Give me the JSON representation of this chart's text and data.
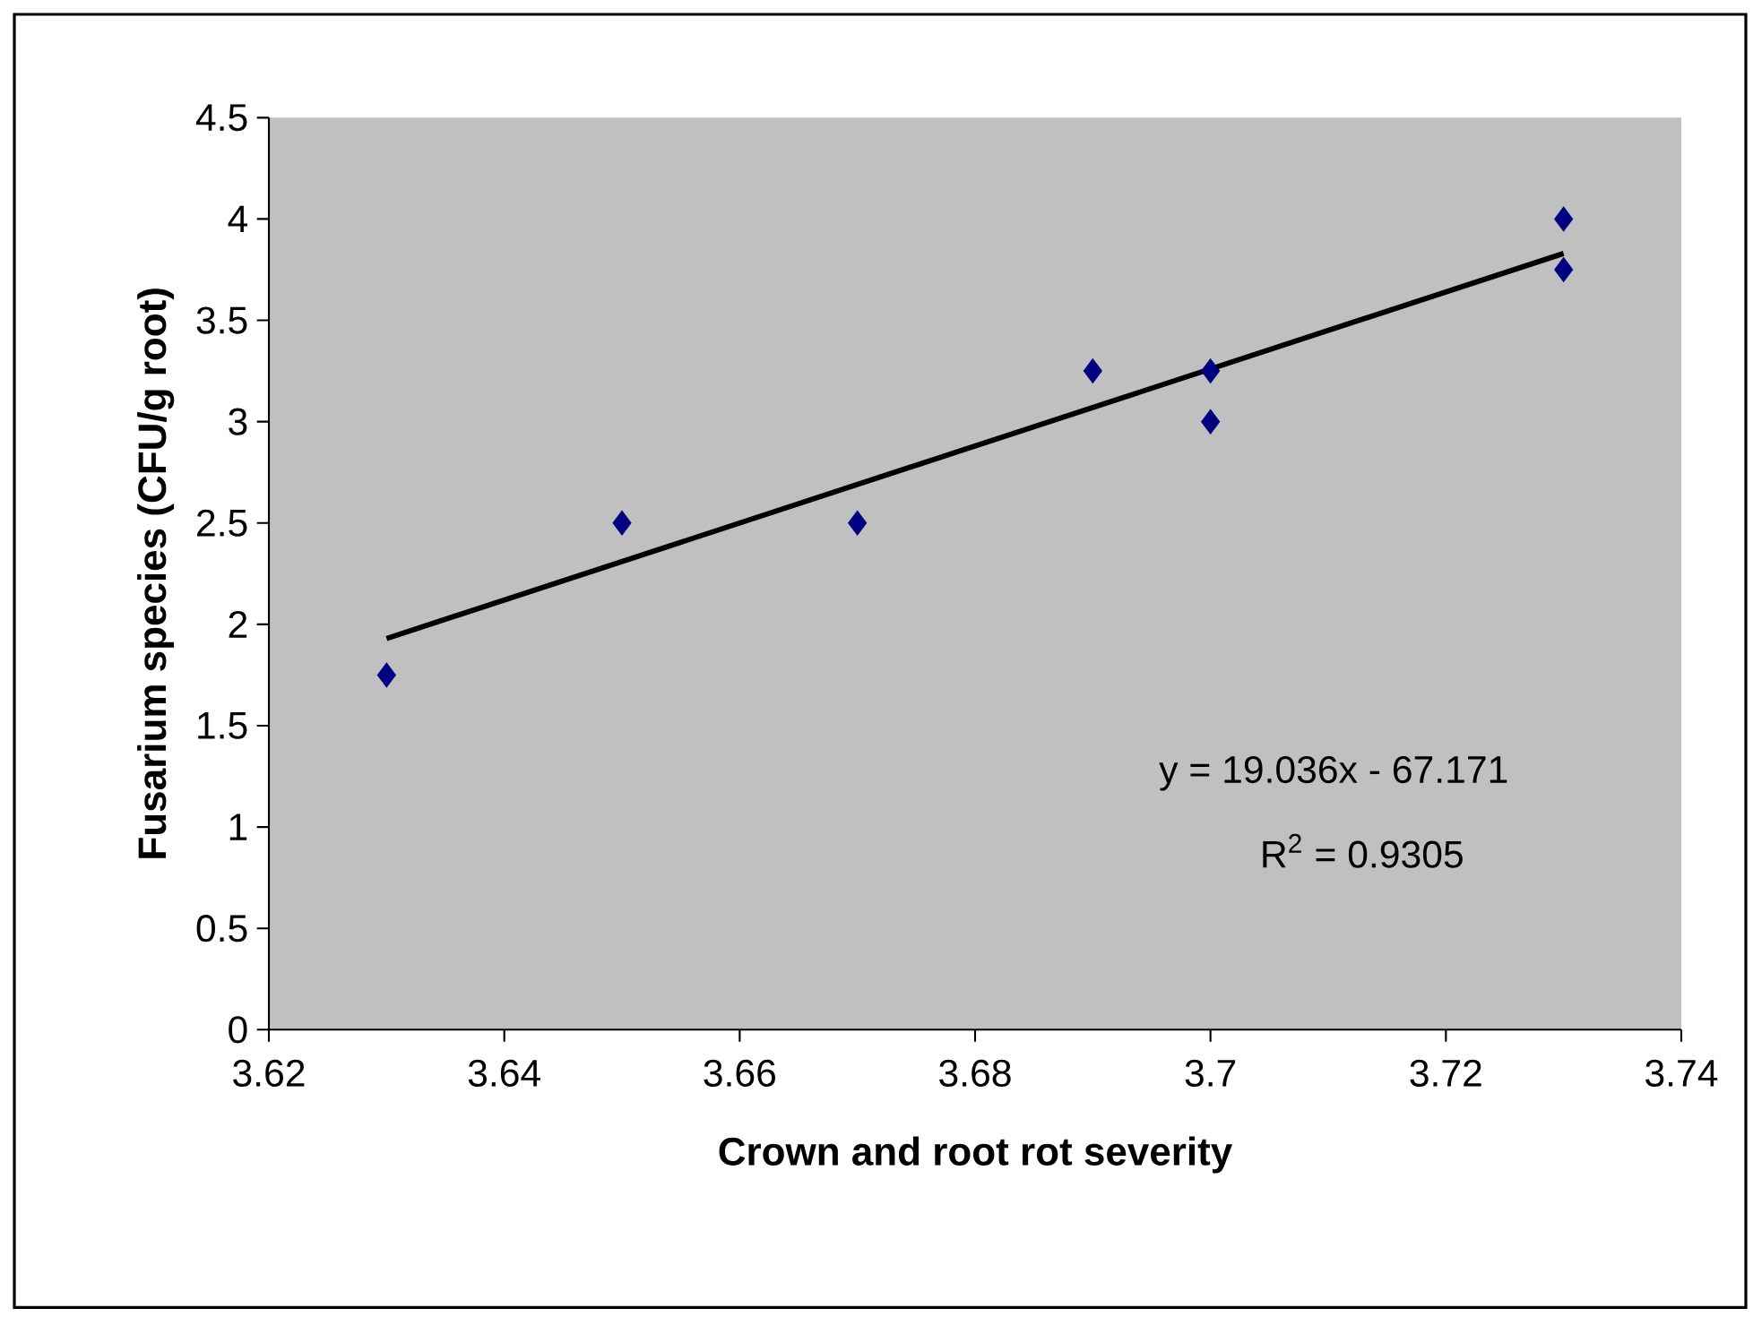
{
  "chart_data": {
    "type": "scatter",
    "xlabel": "Crown and root rot severity",
    "ylabel": "Fusarium species (CFU/g root)",
    "xlim": [
      3.62,
      3.74
    ],
    "ylim": [
      0,
      4.5
    ],
    "xticks": [
      3.62,
      3.64,
      3.66,
      3.68,
      3.7,
      3.72,
      3.74
    ],
    "yticks": [
      0,
      0.5,
      1,
      1.5,
      2,
      2.5,
      3,
      3.5,
      4,
      4.5
    ],
    "marker": "diamond",
    "series": [
      {
        "color": "#000080",
        "x": [
          3.63,
          3.65,
          3.67,
          3.69,
          3.7,
          3.7,
          3.73,
          3.73
        ],
        "values": [
          1.75,
          2.5,
          2.5,
          3.25,
          3.25,
          3.0,
          4.0,
          3.75
        ]
      },
      {
        "type": "line",
        "color": "#000000",
        "marker": "none",
        "x": [
          3.63,
          3.73
        ],
        "values": [
          1.93,
          3.83
        ]
      }
    ],
    "annotations": [
      "y = 19.036x - 67.171",
      "R$^{2}$ = 0.9305"
    ]
  }
}
